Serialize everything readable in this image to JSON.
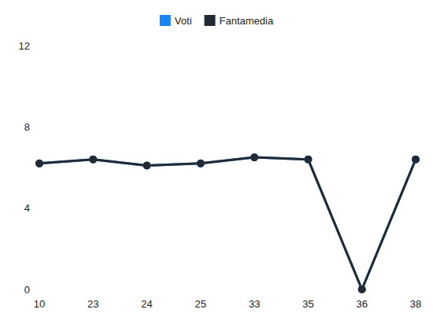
{
  "chart_data": {
    "type": "line",
    "categories": [
      "10",
      "23",
      "24",
      "25",
      "33",
      "35",
      "36",
      "38"
    ],
    "series": [
      {
        "name": "Voti",
        "color": "#1a84f5",
        "values": [
          6.2,
          6.4,
          6.1,
          6.2,
          6.5,
          6.4,
          0,
          6.4
        ]
      },
      {
        "name": "Fantamedia",
        "color": "#232a33",
        "values": [
          6.2,
          6.4,
          6.1,
          6.2,
          6.5,
          6.4,
          0,
          6.4
        ]
      }
    ],
    "ylim": [
      0,
      12
    ],
    "yticks": [
      0,
      4,
      8,
      12
    ],
    "grid": false,
    "legend": "top",
    "marker": "circle"
  }
}
